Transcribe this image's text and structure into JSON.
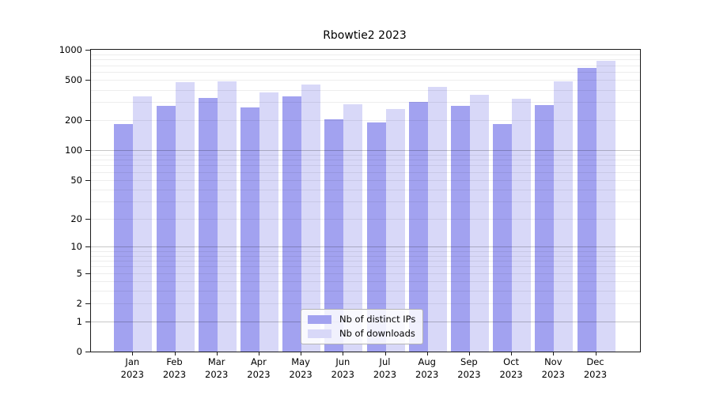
{
  "title": "Rbowtie2 2023",
  "colors": {
    "distinct_ips": "#a2a2f0",
    "downloads": "#d8d8f8",
    "axis": "#1a1a1a"
  },
  "chart_data": {
    "type": "bar",
    "title": "Rbowtie2 2023",
    "categories": [
      "Jan",
      "Feb",
      "Mar",
      "Apr",
      "May",
      "Jun",
      "Jul",
      "Aug",
      "Sep",
      "Oct",
      "Nov",
      "Dec"
    ],
    "year_label": "2023",
    "series": [
      {
        "name": "Nb of distinct IPs",
        "color_key": "distinct_ips",
        "values": [
          182,
          275,
          332,
          265,
          344,
          203,
          190,
          302,
          275,
          183,
          280,
          662
        ]
      },
      {
        "name": "Nb of downloads",
        "color_key": "downloads",
        "values": [
          344,
          478,
          481,
          373,
          452,
          286,
          259,
          426,
          355,
          323,
          481,
          780
        ]
      }
    ],
    "y_scale": "log1p",
    "ylim": [
      0,
      1000
    ],
    "y_ticks": [
      "1000",
      "500",
      "200",
      "100",
      "50",
      "20",
      "10",
      "5",
      "2",
      "1",
      "0"
    ],
    "grid": true,
    "legend_position": "lower center"
  }
}
